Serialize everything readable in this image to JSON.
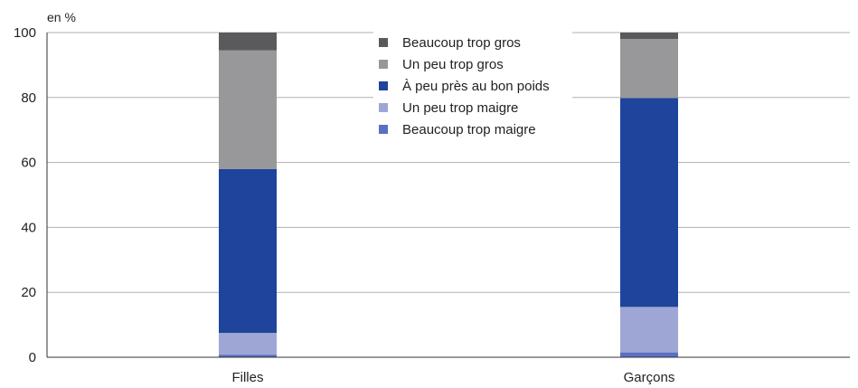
{
  "chart_data": {
    "type": "bar",
    "stacked": true,
    "unit_label": "en %",
    "categories": [
      "Filles",
      "Garçons"
    ],
    "ylim": [
      0,
      100
    ],
    "yticks": [
      0,
      20,
      40,
      60,
      80,
      100
    ],
    "grid": true,
    "legend_position": "top-center",
    "series": [
      {
        "name": "Beaucoup trop maigre",
        "color": "#5b6fc2",
        "values": [
          0.8,
          1.5
        ]
      },
      {
        "name": "Un peu trop maigre",
        "color": "#9ea6d6",
        "values": [
          6.7,
          14.0
        ]
      },
      {
        "name": "À peu près au bon poids",
        "color": "#1e449b",
        "values": [
          50.5,
          64.3
        ]
      },
      {
        "name": "Un peu trop gros",
        "color": "#98989a",
        "values": [
          36.5,
          18.2
        ]
      },
      {
        "name": "Beaucoup trop gros",
        "color": "#5a5a5c",
        "values": [
          5.5,
          2.0
        ]
      }
    ]
  }
}
